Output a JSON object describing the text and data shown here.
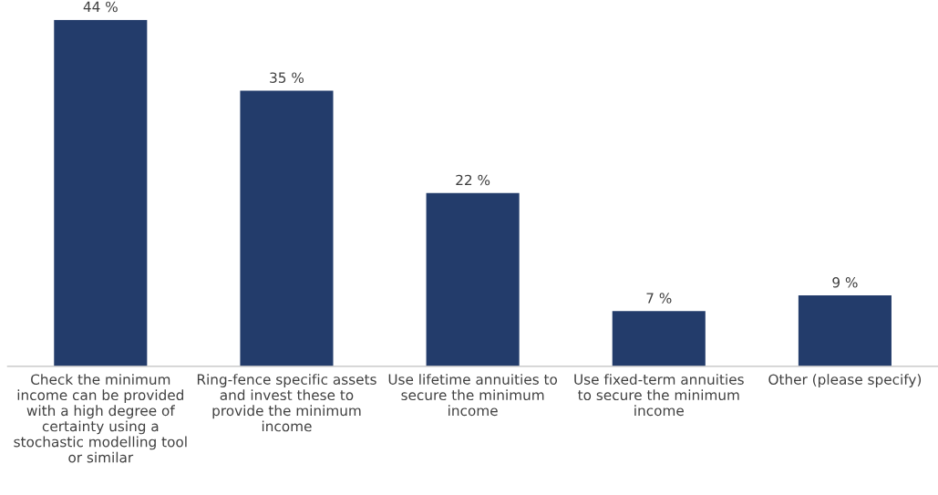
{
  "chart_data": {
    "type": "bar",
    "categories": [
      "Check the minimum\nincome can be provided\nwith a high degree of\ncertainty using a\nstochastic modelling tool\nor similar",
      "Ring-fence specific assets\nand invest these to\nprovide the minimum\nincome",
      "Use lifetime annuities to\nsecure the minimum\nincome",
      "Use fixed-term annuities\nto secure the minimum\nincome",
      "Other (please specify)"
    ],
    "values": [
      44,
      35,
      22,
      7,
      9
    ],
    "value_labels": [
      "44 %",
      "35 %",
      "22 %",
      "7 %",
      "9 %"
    ],
    "color": "#233c6b",
    "grid": false,
    "legend": false
  }
}
